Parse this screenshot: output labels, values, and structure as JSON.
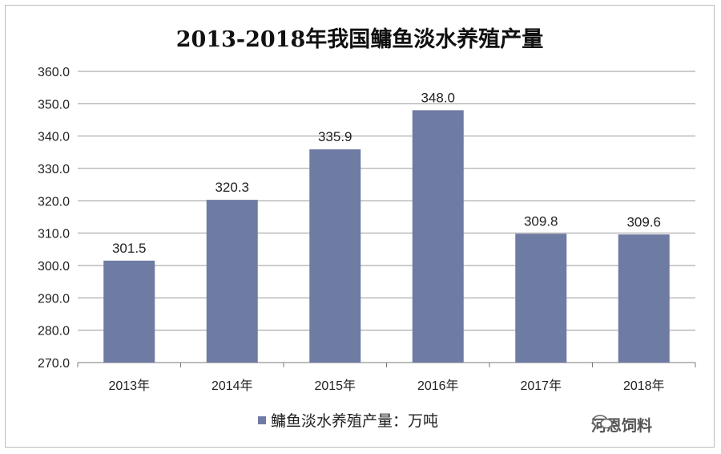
{
  "chart_data": {
    "type": "bar",
    "title": "2013-2018年我国鳙鱼淡水养殖产量",
    "categories": [
      "2013年",
      "2014年",
      "2015年",
      "2016年",
      "2017年",
      "2018年"
    ],
    "series": [
      {
        "name": "鳙鱼淡水养殖产量：万吨",
        "values": [
          301.5,
          320.3,
          335.9,
          348.0,
          309.8,
          309.6
        ]
      }
    ],
    "value_labels": [
      "301.5",
      "320.3",
      "335.9",
      "348.0",
      "309.8",
      "309.6"
    ],
    "ylim": [
      270,
      360
    ],
    "yticks": [
      "270.0",
      "280.0",
      "290.0",
      "300.0",
      "310.0",
      "320.0",
      "330.0",
      "340.0",
      "350.0",
      "360.0"
    ],
    "xlabel": "",
    "ylabel": "",
    "grid": true,
    "legend_position": "bottom",
    "bar_color": "#6e7ba3"
  },
  "watermark": {
    "text": "河恩饲料"
  }
}
